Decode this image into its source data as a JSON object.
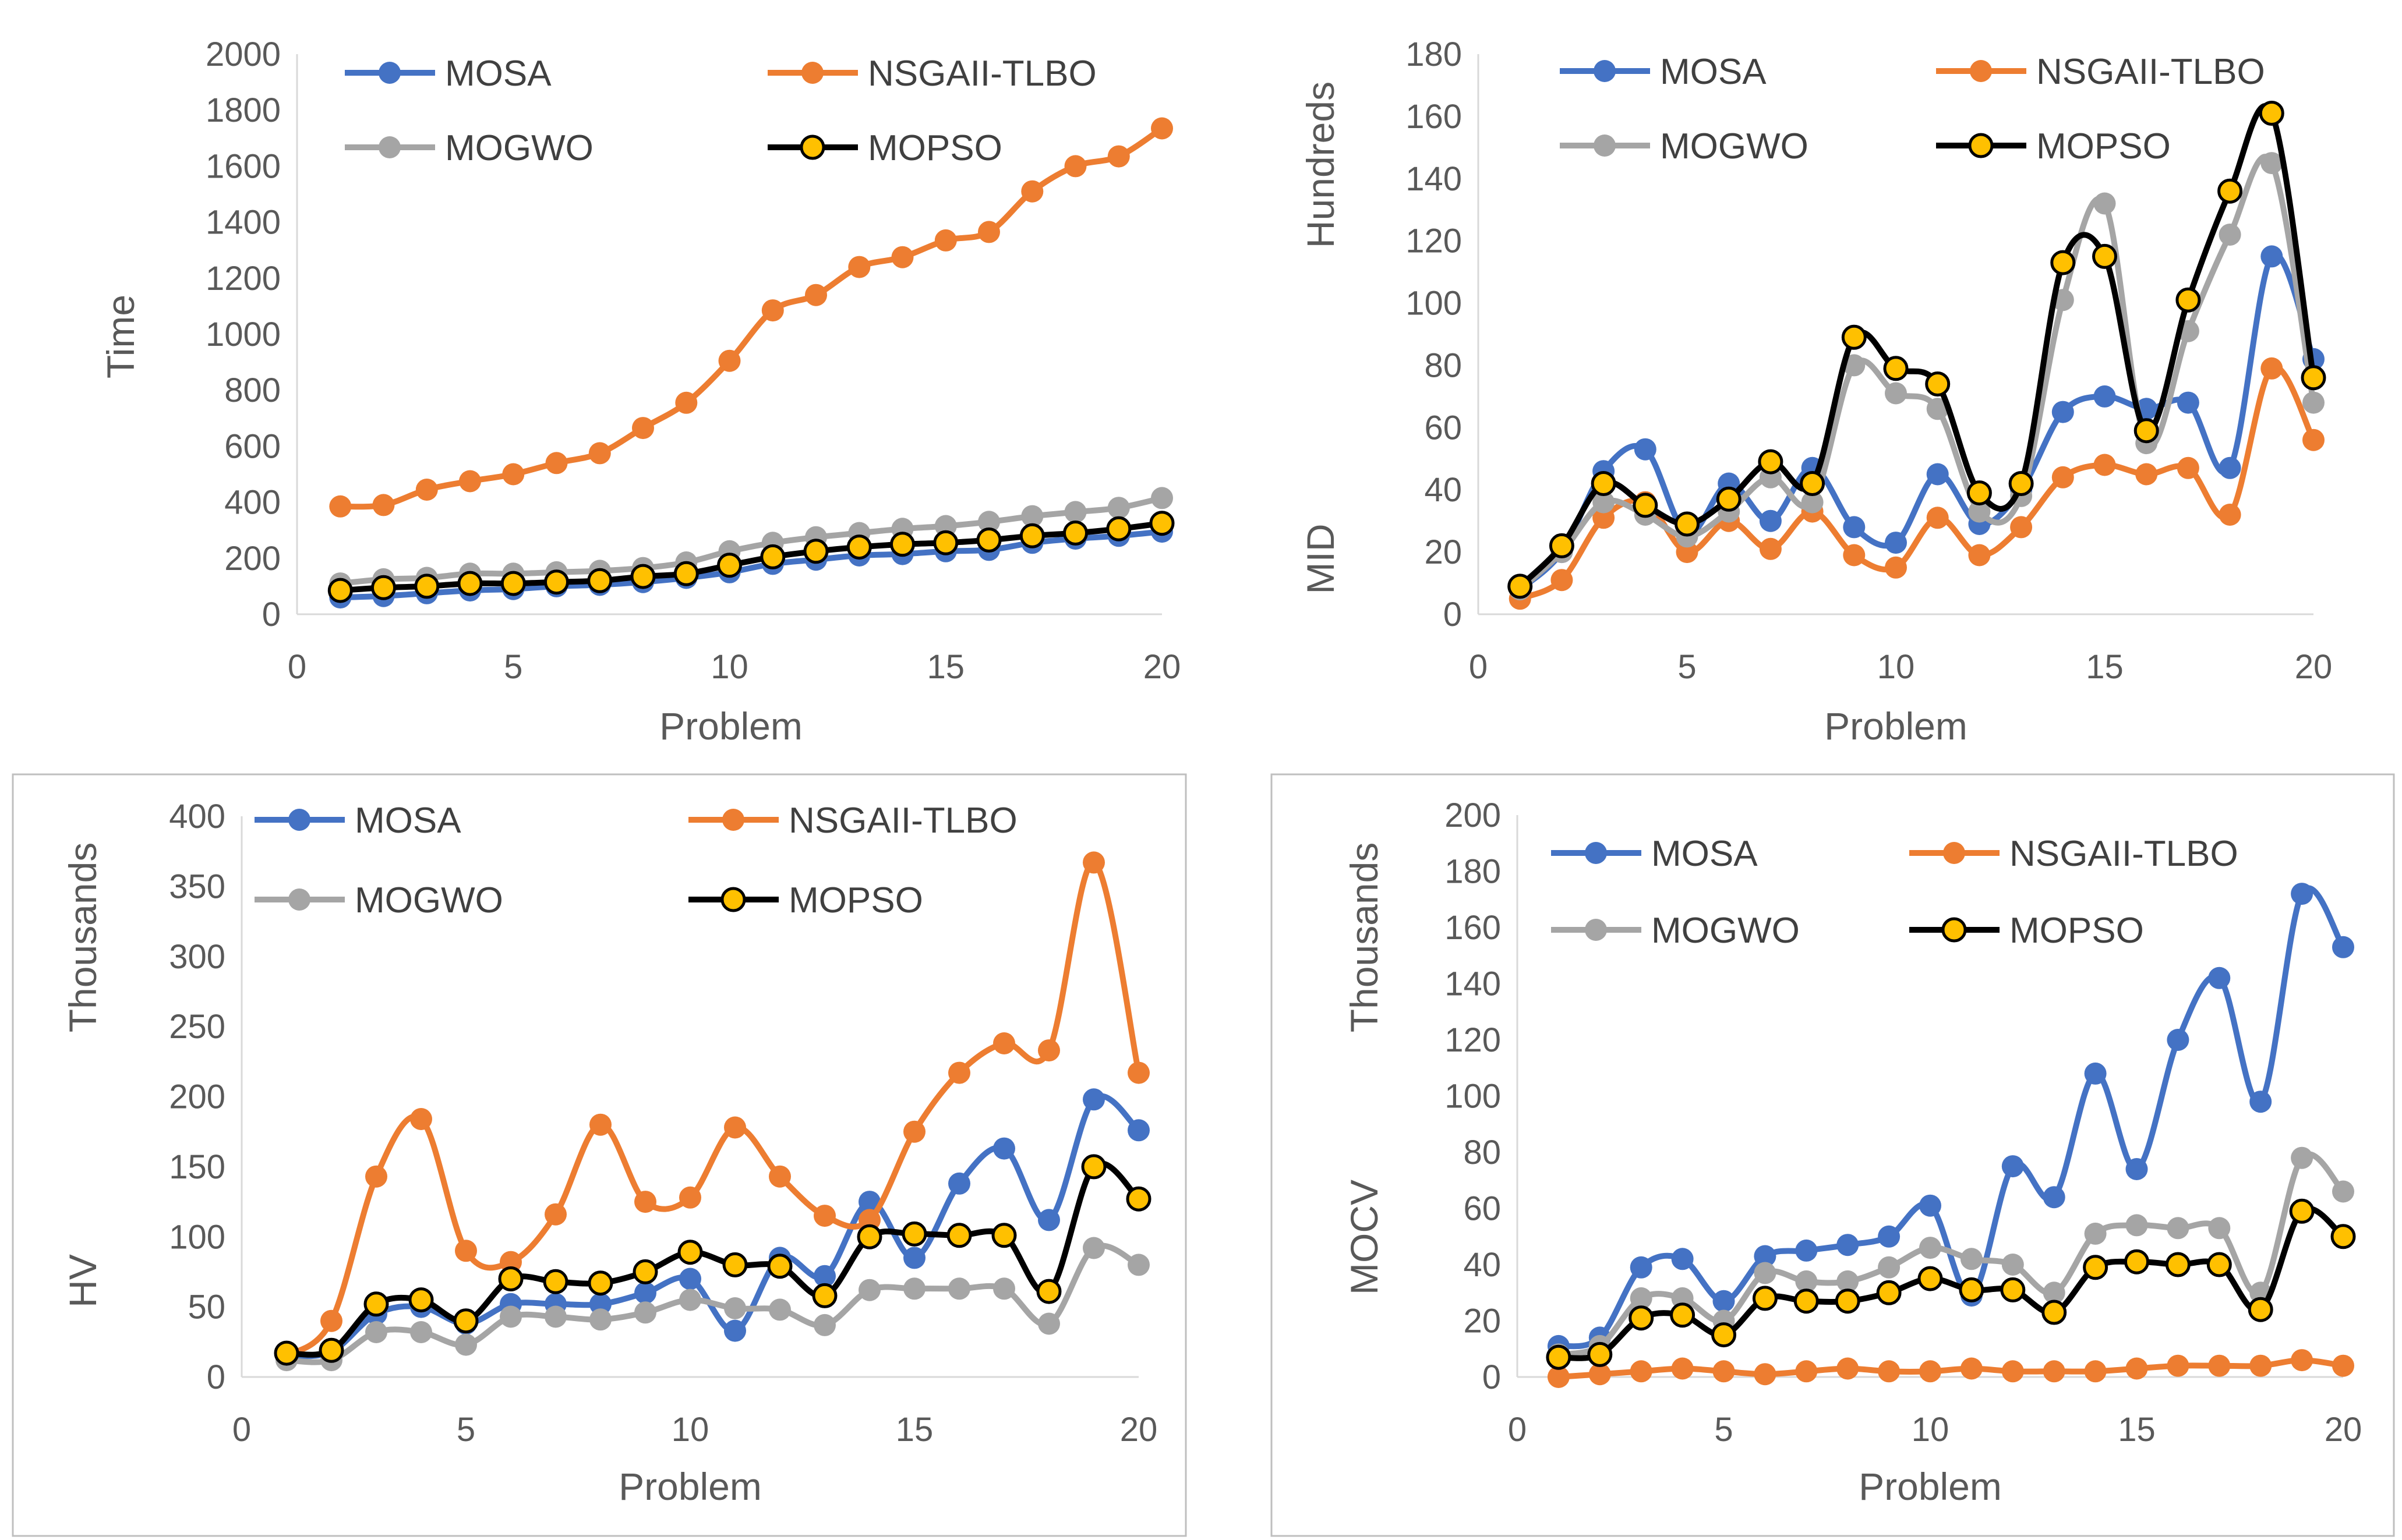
{
  "colors": {
    "MOSA": "#4472C4",
    "NSGAII-TLBO": "#ED7D31",
    "MOGWO": "#A5A5A5",
    "MOPSO_line": "#000000",
    "MOPSO_marker": "#FFC000",
    "axis": "#D9D9D9",
    "frame": "#BFBFBF"
  },
  "chart_data": [
    {
      "id": "time",
      "type": "line",
      "title": "",
      "xlabel": "Problem",
      "ylabel": "Time",
      "ylabel2": "",
      "xlim": [
        0,
        20
      ],
      "ylim": [
        0,
        2000
      ],
      "xticks": [
        0,
        5,
        10,
        15,
        20
      ],
      "yticks": [
        0,
        200,
        400,
        600,
        800,
        1000,
        1200,
        1400,
        1600,
        1800,
        2000
      ],
      "x": [
        1,
        2,
        3,
        4,
        5,
        6,
        7,
        8,
        9,
        10,
        11,
        12,
        13,
        14,
        15,
        16,
        17,
        18,
        19,
        20
      ],
      "legend": [
        "MOSA",
        "NSGAII-TLBO",
        "MOGWO",
        "MOPSO"
      ],
      "series": [
        {
          "name": "MOSA",
          "values": [
            60,
            65,
            75,
            85,
            90,
            100,
            105,
            115,
            130,
            150,
            180,
            195,
            210,
            215,
            225,
            230,
            255,
            270,
            280,
            295
          ]
        },
        {
          "name": "NSGAII-TLBO",
          "values": [
            385,
            390,
            445,
            475,
            500,
            540,
            575,
            665,
            755,
            905,
            1085,
            1140,
            1240,
            1275,
            1335,
            1365,
            1510,
            1600,
            1635,
            1735
          ]
        },
        {
          "name": "MOGWO",
          "values": [
            110,
            125,
            130,
            145,
            145,
            150,
            155,
            165,
            185,
            225,
            255,
            275,
            290,
            305,
            315,
            330,
            350,
            365,
            380,
            415
          ]
        },
        {
          "name": "MOPSO",
          "values": [
            85,
            95,
            100,
            110,
            110,
            115,
            120,
            135,
            145,
            175,
            205,
            225,
            240,
            250,
            255,
            265,
            280,
            290,
            305,
            325
          ]
        }
      ]
    },
    {
      "id": "mid",
      "type": "line",
      "title": "",
      "xlabel": "Problem",
      "ylabel": "MID",
      "ylabel2": "Hundreds",
      "xlim": [
        0,
        20
      ],
      "ylim": [
        0,
        180
      ],
      "xticks": [
        0,
        5,
        10,
        15,
        20
      ],
      "yticks": [
        0,
        20,
        40,
        60,
        80,
        100,
        120,
        140,
        160,
        180
      ],
      "x": [
        1,
        2,
        3,
        4,
        5,
        6,
        7,
        8,
        9,
        10,
        11,
        12,
        13,
        14,
        15,
        16,
        17,
        18,
        19,
        20
      ],
      "legend": [
        "MOSA",
        "NSGAII-TLBO",
        "MOGWO",
        "MOPSO"
      ],
      "series": [
        {
          "name": "MOSA",
          "values": [
            8,
            20,
            46,
            53,
            26,
            42,
            30,
            47,
            28,
            23,
            45,
            29,
            40,
            65,
            70,
            66,
            68,
            47,
            115,
            82
          ]
        },
        {
          "name": "NSGAII-TLBO",
          "values": [
            5,
            11,
            31,
            36,
            20,
            30,
            21,
            33,
            19,
            15,
            31,
            19,
            28,
            44,
            48,
            45,
            47,
            32,
            79,
            56
          ]
        },
        {
          "name": "MOGWO",
          "values": [
            8,
            20,
            36,
            32,
            25,
            33,
            44,
            36,
            80,
            71,
            66,
            33,
            38,
            101,
            132,
            55,
            91,
            122,
            145,
            68
          ]
        },
        {
          "name": "MOPSO",
          "values": [
            9,
            22,
            42,
            35,
            29,
            37,
            49,
            42,
            89,
            79,
            74,
            39,
            42,
            113,
            115,
            59,
            101,
            136,
            161,
            76
          ]
        }
      ]
    },
    {
      "id": "hv",
      "type": "line",
      "title": "",
      "xlabel": "Problem",
      "ylabel": "HV",
      "ylabel2": "Thousands",
      "xlim": [
        0,
        20
      ],
      "ylim": [
        0,
        400
      ],
      "xticks": [
        0,
        5,
        10,
        15,
        20
      ],
      "yticks": [
        0,
        50,
        100,
        150,
        200,
        250,
        300,
        350,
        400
      ],
      "x": [
        1,
        2,
        3,
        4,
        5,
        6,
        7,
        8,
        9,
        10,
        11,
        12,
        13,
        14,
        15,
        16,
        17,
        18,
        19,
        20
      ],
      "legend": [
        "MOSA",
        "NSGAII-TLBO",
        "MOGWO",
        "MOPSO"
      ],
      "series": [
        {
          "name": "MOSA",
          "values": [
            15,
            18,
            45,
            50,
            38,
            52,
            52,
            52,
            60,
            70,
            33,
            85,
            72,
            125,
            85,
            138,
            163,
            112,
            198,
            176
          ]
        },
        {
          "name": "NSGAII-TLBO",
          "values": [
            15,
            40,
            143,
            184,
            90,
            82,
            116,
            180,
            125,
            128,
            178,
            143,
            115,
            112,
            175,
            217,
            238,
            233,
            367,
            217
          ]
        },
        {
          "name": "MOGWO",
          "values": [
            12,
            12,
            32,
            32,
            23,
            43,
            43,
            41,
            46,
            55,
            49,
            48,
            37,
            62,
            63,
            63,
            63,
            38,
            92,
            80
          ]
        },
        {
          "name": "MOPSO",
          "values": [
            17,
            19,
            52,
            55,
            40,
            70,
            68,
            67,
            75,
            89,
            80,
            79,
            58,
            100,
            102,
            101,
            101,
            61,
            150,
            127
          ]
        }
      ]
    },
    {
      "id": "mocv",
      "type": "line",
      "title": "",
      "xlabel": "Problem",
      "ylabel": "MOCV",
      "ylabel2": "Thousands",
      "xlim": [
        0,
        20
      ],
      "ylim": [
        0,
        200
      ],
      "xticks": [
        0,
        5,
        10,
        15,
        20
      ],
      "yticks": [
        0,
        20,
        40,
        60,
        80,
        100,
        120,
        140,
        160,
        180,
        200
      ],
      "x": [
        1,
        2,
        3,
        4,
        5,
        6,
        7,
        8,
        9,
        10,
        11,
        12,
        13,
        14,
        15,
        16,
        17,
        18,
        19,
        20
      ],
      "legend": [
        "MOSA",
        "NSGAII-TLBO",
        "MOGWO",
        "MOPSO"
      ],
      "series": [
        {
          "name": "MOSA",
          "values": [
            11,
            14,
            39,
            42,
            27,
            43,
            45,
            47,
            50,
            61,
            29,
            75,
            64,
            108,
            74,
            120,
            142,
            98,
            172,
            153
          ]
        },
        {
          "name": "NSGAII-TLBO",
          "values": [
            0,
            1,
            2,
            3,
            2,
            1,
            2,
            3,
            2,
            2,
            3,
            2,
            2,
            2,
            3,
            4,
            4,
            4,
            6,
            4
          ]
        },
        {
          "name": "MOGWO",
          "values": [
            8,
            11,
            28,
            28,
            20,
            37,
            34,
            34,
            39,
            46,
            42,
            40,
            30,
            51,
            54,
            53,
            53,
            30,
            78,
            66
          ]
        },
        {
          "name": "MOPSO",
          "values": [
            7,
            8,
            21,
            22,
            15,
            28,
            27,
            27,
            30,
            35,
            31,
            31,
            23,
            39,
            41,
            40,
            40,
            24,
            59,
            50
          ]
        }
      ]
    }
  ]
}
